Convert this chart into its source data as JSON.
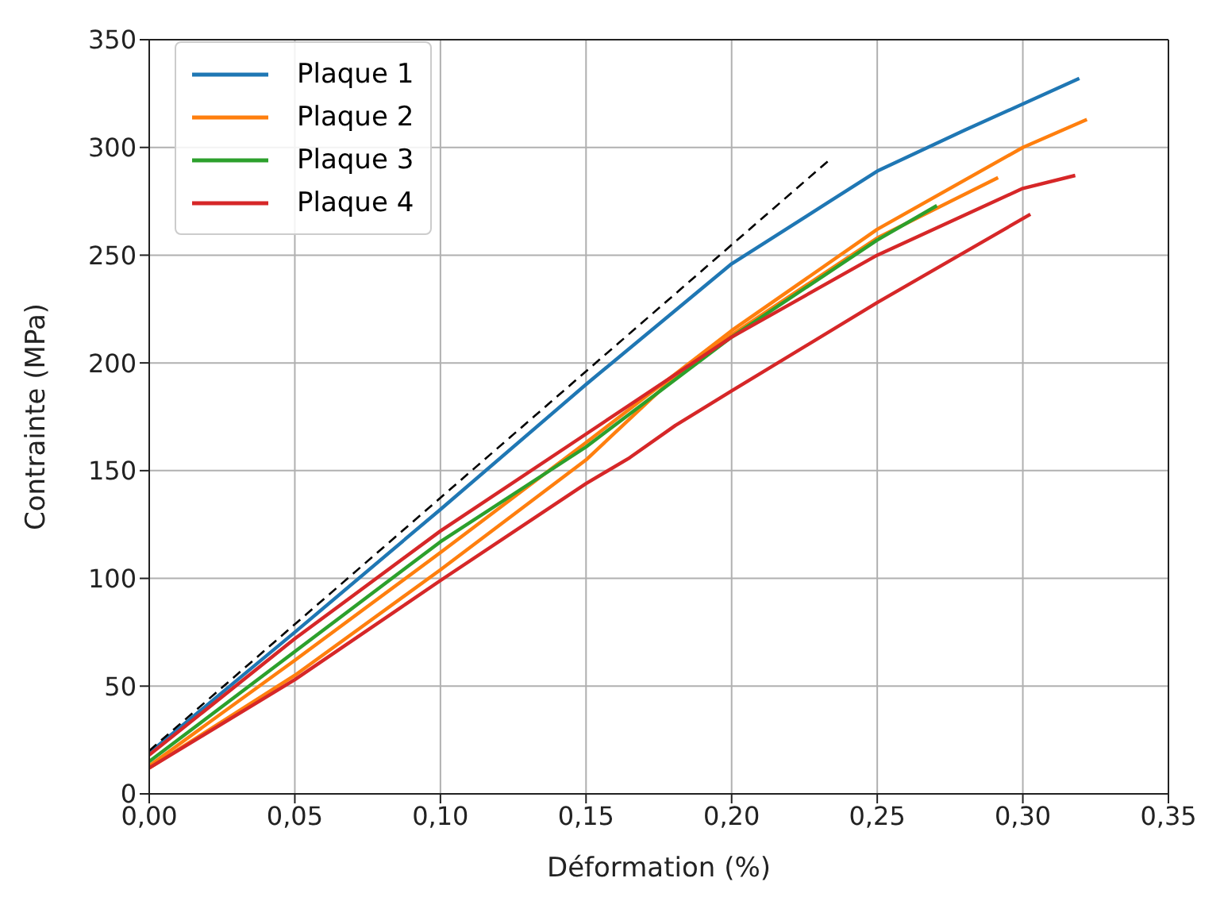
{
  "chart_data": {
    "type": "line",
    "xlabel": "Déformation (%)",
    "ylabel": "Contrainte (MPa)",
    "xlim": [
      0,
      0.35
    ],
    "xticks": [
      {
        "value": 0,
        "label": "0,00"
      },
      {
        "value": 0.05,
        "label": "0,05"
      },
      {
        "value": 0.1,
        "label": "0,10"
      },
      {
        "value": 0.15,
        "label": "0,15"
      },
      {
        "value": 0.2,
        "label": "0,20"
      },
      {
        "value": 0.25,
        "label": "0,25"
      },
      {
        "value": 0.3,
        "label": "0,30"
      },
      {
        "value": 0.35,
        "label": "0,35"
      }
    ],
    "ylim": [
      0,
      350
    ],
    "yticks": [
      0,
      50,
      100,
      150,
      200,
      250,
      300,
      350
    ],
    "grid": true,
    "legend": "top left",
    "marker": "none",
    "line_style": "solid",
    "series": [
      {
        "name": "Plaque 1",
        "color": "#1f77b4",
        "x": [
          0,
          0.05,
          0.1,
          0.15,
          0.2,
          0.25,
          0.28,
          0.3194
        ],
        "values": [
          19,
          75,
          132,
          190,
          246,
          289,
          308,
          332
        ]
      },
      {
        "name": "Plaque 2",
        "color": "#ff7f0e",
        "x": [
          0,
          0.05,
          0.1,
          0.15,
          0.2,
          0.25,
          0.3,
          0.322
        ],
        "values": [
          13,
          62,
          112,
          163,
          215,
          262,
          300,
          313
        ]
      },
      {
        "color": "#ff7f0e",
        "x": [
          0,
          0.05,
          0.1,
          0.15,
          0.18,
          0.2,
          0.25,
          0.2915
        ],
        "values": [
          12,
          55,
          104,
          155,
          193,
          213,
          258,
          286
        ]
      },
      {
        "name": "Plaque 3",
        "color": "#2ca02c",
        "x": [
          0,
          0.05,
          0.1,
          0.15,
          0.2,
          0.25,
          0.2705
        ],
        "values": [
          15,
          66,
          117,
          161,
          212,
          257,
          273
        ]
      },
      {
        "name": "Plaque 4",
        "color": "#d62728",
        "x": [
          0,
          0.05,
          0.1,
          0.15,
          0.2,
          0.25,
          0.3,
          0.318
        ],
        "values": [
          18,
          72,
          122,
          167,
          212,
          250,
          281,
          287
        ]
      },
      {
        "color": "#d62728",
        "x": [
          0,
          0.05,
          0.1,
          0.15,
          0.165,
          0.1807,
          0.2,
          0.25,
          0.3026
        ],
        "values": [
          12,
          53,
          99,
          144,
          156,
          171,
          187,
          228,
          269
        ]
      },
      {
        "color": "#000000",
        "line_style": "dashed",
        "x": [
          0,
          0.2334
        ],
        "values": [
          20,
          294
        ]
      }
    ]
  }
}
